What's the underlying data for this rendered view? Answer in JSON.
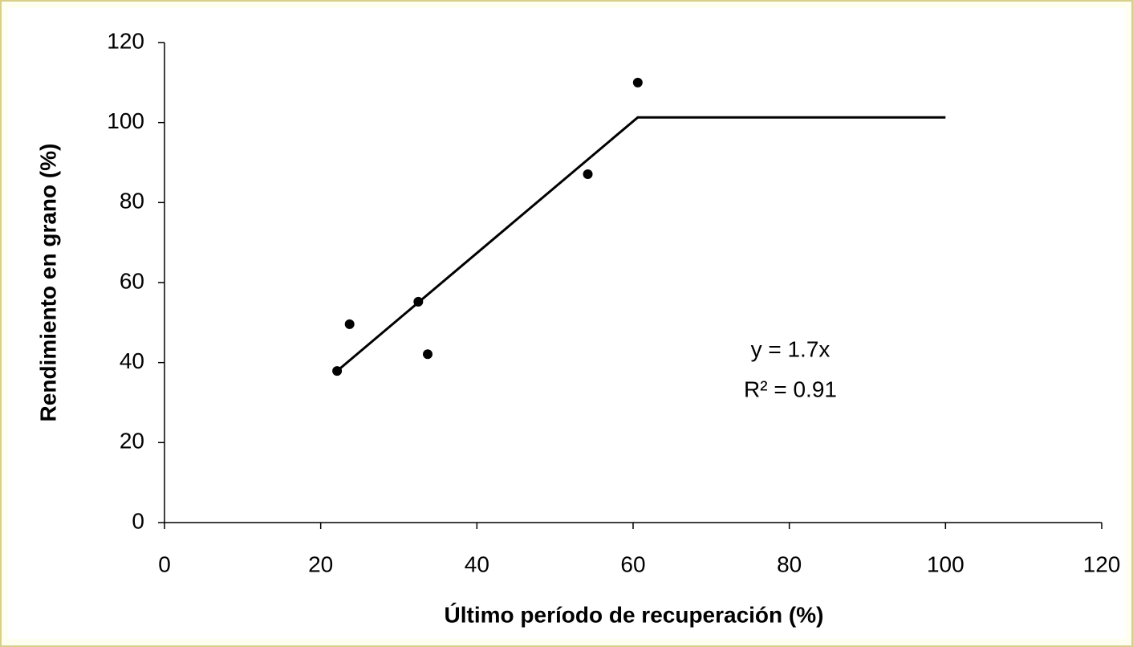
{
  "chart_data": {
    "type": "scatter",
    "xlabel": "Último período de recuperación (%)",
    "ylabel": "Rendimiento en grano (%)",
    "points": {
      "x": [
        22.1,
        23.7,
        32.5,
        33.7,
        54.2,
        60.6
      ],
      "y": [
        37.9,
        49.6,
        55.2,
        42.1,
        87.1,
        110
      ],
      "color": "#000000"
    },
    "line": {
      "x": [
        22.1,
        60.6,
        100
      ],
      "y": [
        37.9,
        101.3,
        101.3
      ],
      "color": "#000000"
    },
    "annotations": [
      "y = 1.7x",
      "R² = 0.91"
    ],
    "xlim": [
      0,
      120
    ],
    "xticks": [
      0,
      20,
      40,
      60,
      80,
      100,
      120
    ],
    "ylim": [
      0,
      120
    ],
    "yticks": [
      0,
      20,
      40,
      60,
      80,
      100,
      120
    ]
  }
}
